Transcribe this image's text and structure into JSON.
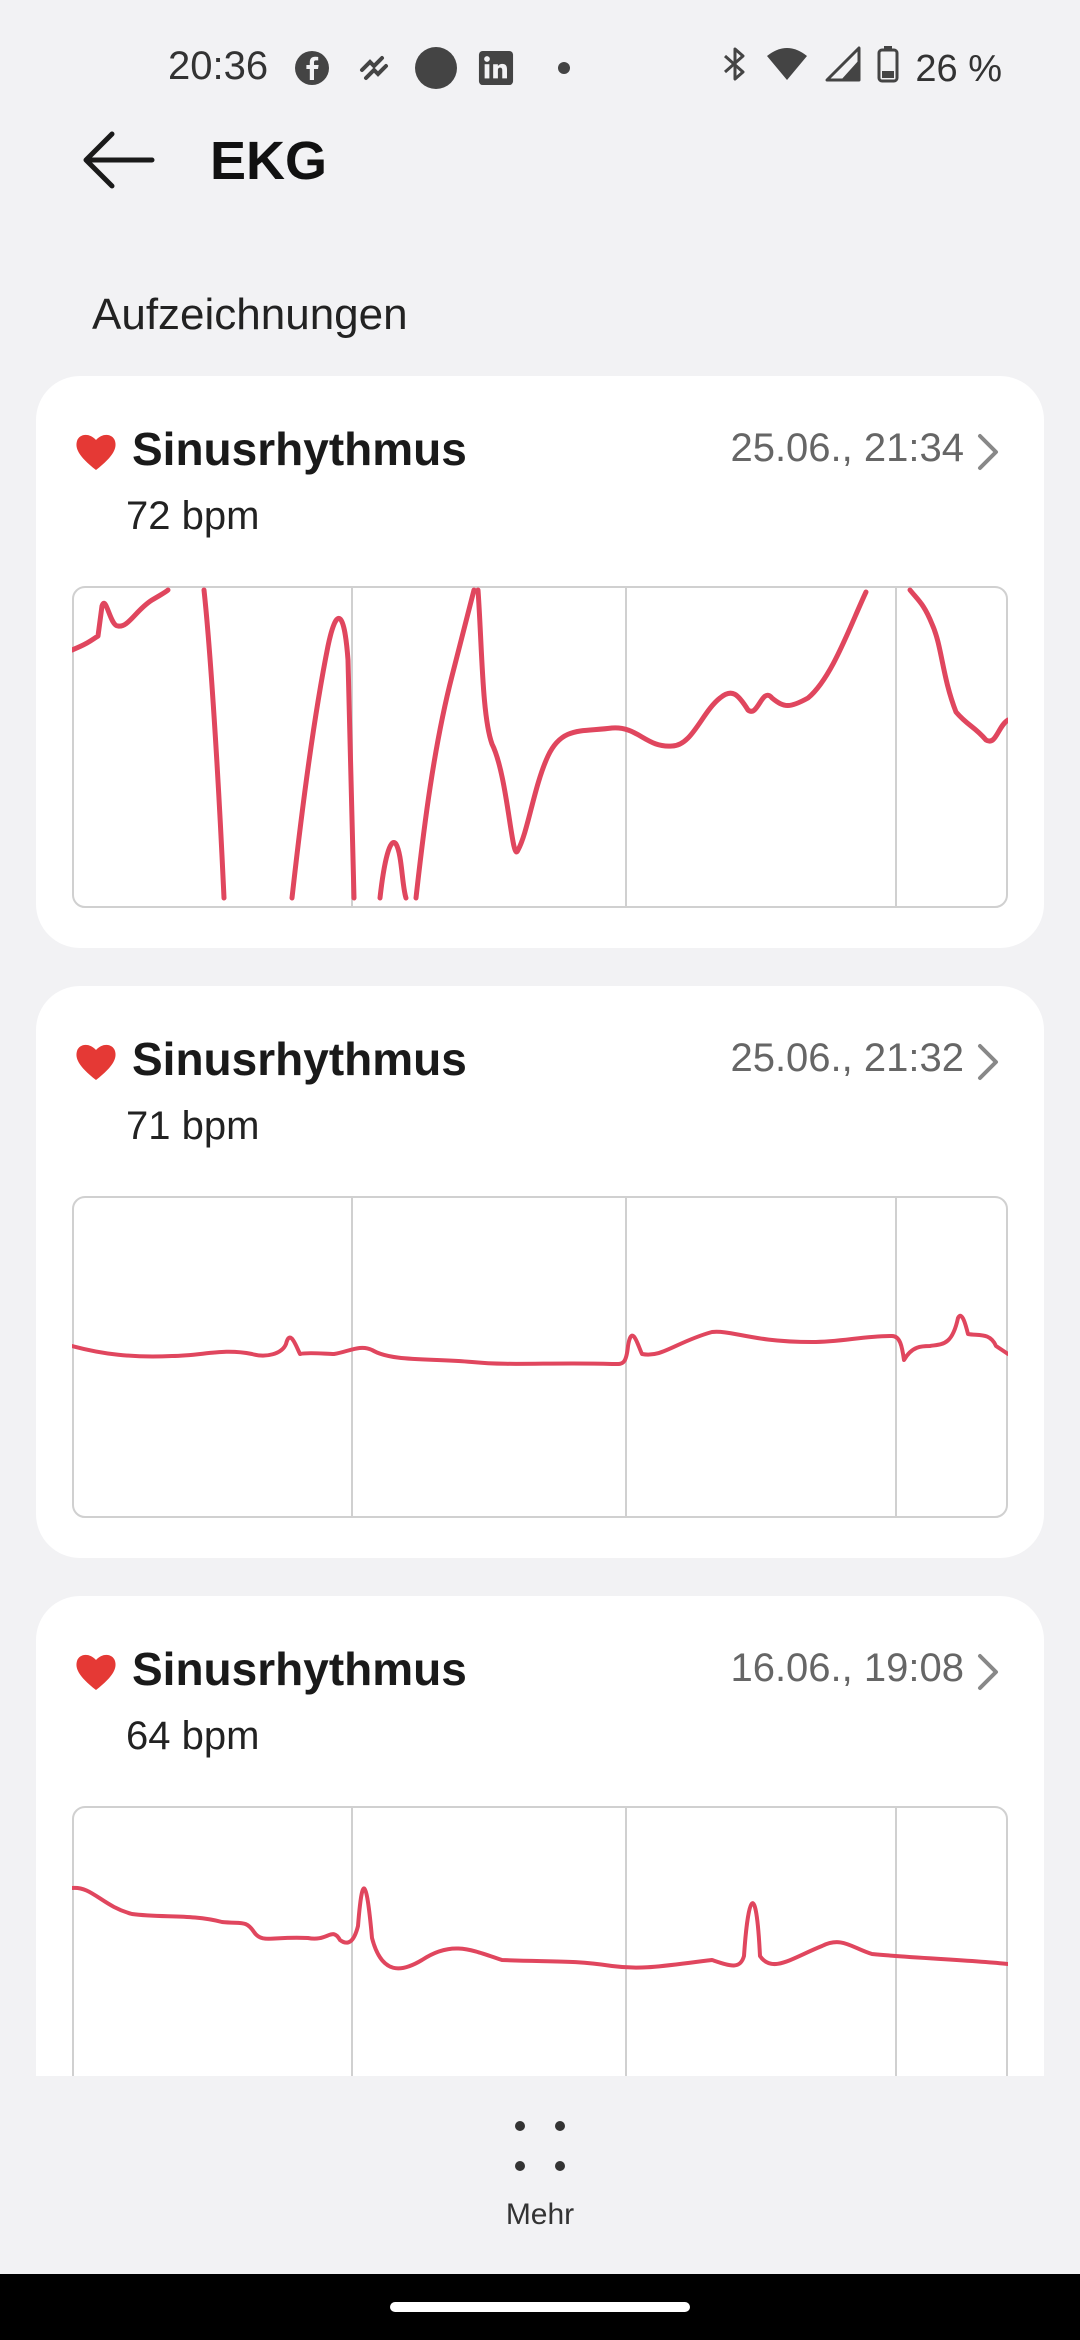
{
  "status_bar": {
    "time": "20:36",
    "left_icons": [
      "facebook-icon",
      "huawei-health-icon",
      "circle-icon",
      "linkedin-icon",
      "dot-icon"
    ],
    "battery": "26 %",
    "right_icons": [
      "bluetooth-icon",
      "wifi-icon",
      "cell-signal-icon",
      "battery-icon"
    ]
  },
  "header": {
    "title": "EKG",
    "back_icon": "back-arrow-icon"
  },
  "section": {
    "label": "Aufzeichnungen"
  },
  "accent_color": "#e0465e",
  "records": [
    {
      "rhythm": "Sinusrhythmus",
      "bpm": "72 bpm",
      "datetime": "25.06., 21:34",
      "icon": "heart-icon"
    },
    {
      "rhythm": "Sinusrhythmus",
      "bpm": "71 bpm",
      "datetime": "25.06., 21:32",
      "icon": "heart-icon"
    },
    {
      "rhythm": "Sinusrhythmus",
      "bpm": "64 bpm",
      "datetime": "16.06., 19:08",
      "icon": "heart-icon"
    }
  ],
  "bottom_bar": {
    "more_label": "Mehr",
    "more_icon": "four-dots-icon"
  }
}
